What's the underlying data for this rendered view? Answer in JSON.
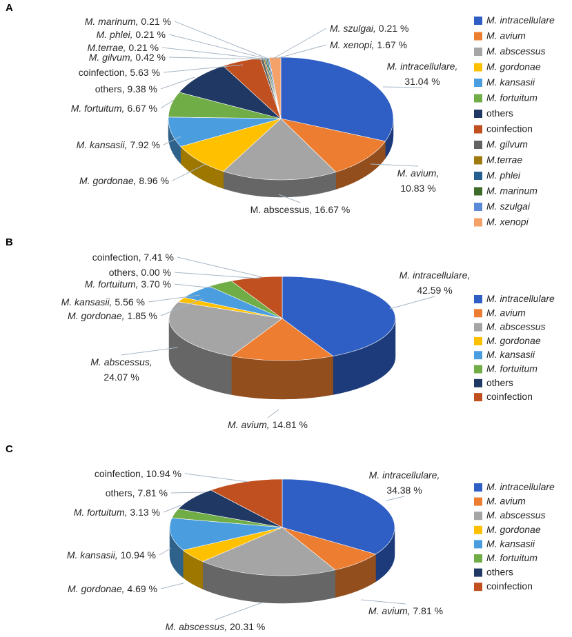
{
  "colors": {
    "M. intracellulare": "#2f5fc4",
    "M. avium": "#ed7d31",
    "M. abscessus": "#a5a5a5",
    "M. gordonae": "#ffc000",
    "M. kansasii": "#4a9ee0",
    "M. fortuitum": "#70ad47",
    "others": "#203864",
    "coinfection": "#c0501f",
    "M. gilvum": "#636363",
    "M.terrae": "#9e7a0f",
    "M. phlei": "#255e91",
    "M. marinum": "#3d6b2a",
    "M. szulgai": "#5b8ad6",
    "M. xenopi": "#f4a26a"
  },
  "chart_data": [
    {
      "panel": "A",
      "type": "pie",
      "categories": [
        "M. intracellulare",
        "M. avium",
        "M. abscessus",
        "M. gordonae",
        "M. kansasii",
        "M. fortuitum",
        "others",
        "coinfection",
        "M. gilvum",
        "M.terrae",
        "M. phlei",
        "M. marinum",
        "M. szulgai",
        "M. xenopi"
      ],
      "values": [
        31.04,
        10.83,
        16.67,
        8.96,
        7.92,
        6.67,
        9.38,
        5.63,
        0.42,
        0.21,
        0.21,
        0.21,
        0.21,
        1.67
      ],
      "italic": [
        true,
        true,
        false,
        true,
        true,
        true,
        false,
        false,
        true,
        true,
        true,
        true,
        true,
        true
      ],
      "labels": [
        [
          "M. intracellulare,",
          "31.04 %"
        ],
        [
          "M. avium,",
          "10.83 %"
        ],
        [
          "M. abscessus, 16.67 %"
        ],
        [
          "M. gordonae, 8.96 %"
        ],
        [
          "M. kansasii, 7.92 %"
        ],
        [
          "M. fortuitum, 6.67 %"
        ],
        [
          "others, 9.38 %"
        ],
        [
          "coinfection, 5.63 %"
        ],
        [
          "M. gilvum, 0.42 %"
        ],
        [
          "M.terrae, 0.21 %"
        ],
        [
          "M. phlei, 0.21 %"
        ],
        [
          "M. marinum, 0.21 %"
        ],
        [
          "M. szulgai, 0.21 %"
        ],
        [
          "M. xenopi, 1.67 %"
        ]
      ],
      "legend": [
        "M. intracellulare",
        "M. avium",
        "M. abscessus",
        "M. gordonae",
        "M. kansasii",
        "M. fortuitum",
        "others",
        "coinfection",
        "M. gilvum",
        "M.terrae",
        "M. phlei",
        "M. marinum",
        "M. szulgai",
        "M. xenopi"
      ],
      "legend_placement": "right"
    },
    {
      "panel": "B",
      "type": "pie",
      "categories": [
        "M. intracellulare",
        "M. avium",
        "M. abscessus",
        "M. gordonae",
        "M. kansasii",
        "M. fortuitum",
        "others",
        "coinfection"
      ],
      "values": [
        42.59,
        14.81,
        24.07,
        1.85,
        5.56,
        3.7,
        0.0,
        7.41
      ],
      "italic": [
        true,
        true,
        true,
        true,
        true,
        true,
        false,
        false
      ],
      "labels": [
        [
          "M. intracellulare,",
          "42.59 %"
        ],
        [
          "M. avium, 14.81 %"
        ],
        [
          "M. abscessus,",
          "24.07 %"
        ],
        [
          "M. gordonae, 1.85 %"
        ],
        [
          "M. kansasii, 5.56 %"
        ],
        [
          "M. fortuitum, 3.70 %"
        ],
        [
          "others, 0.00 %"
        ],
        [
          "coinfection, 7.41 %"
        ]
      ],
      "legend": [
        "M. intracellulare",
        "M. avium",
        "M. abscessus",
        "M. gordonae",
        "M. kansasii",
        "M. fortuitum",
        "others",
        "coinfection"
      ],
      "legend_placement": "right"
    },
    {
      "panel": "C",
      "type": "pie",
      "categories": [
        "M. intracellulare",
        "M. avium",
        "M. abscessus",
        "M. gordonae",
        "M. kansasii",
        "M. fortuitum",
        "others",
        "coinfection"
      ],
      "values": [
        34.38,
        7.81,
        20.31,
        4.69,
        10.94,
        3.13,
        7.81,
        10.94
      ],
      "italic": [
        true,
        true,
        true,
        true,
        true,
        true,
        false,
        false
      ],
      "labels": [
        [
          "M. intracellulare,",
          "34.38 %"
        ],
        [
          "M. avium, 7.81 %"
        ],
        [
          "M. abscessus, 20.31 %"
        ],
        [
          "M. gordonae, 4.69 %"
        ],
        [
          "M. kansasii, 10.94 %"
        ],
        [
          "M. fortuitum, 3.13 %"
        ],
        [
          "others, 7.81 %"
        ],
        [
          "coinfection, 10.94 %"
        ]
      ],
      "legend": [
        "M. intracellulare",
        "M. avium",
        "M. abscessus",
        "M. gordonae",
        "M. kansasii",
        "M. fortuitum",
        "others",
        "coinfection"
      ],
      "legend_placement": "right"
    }
  ]
}
